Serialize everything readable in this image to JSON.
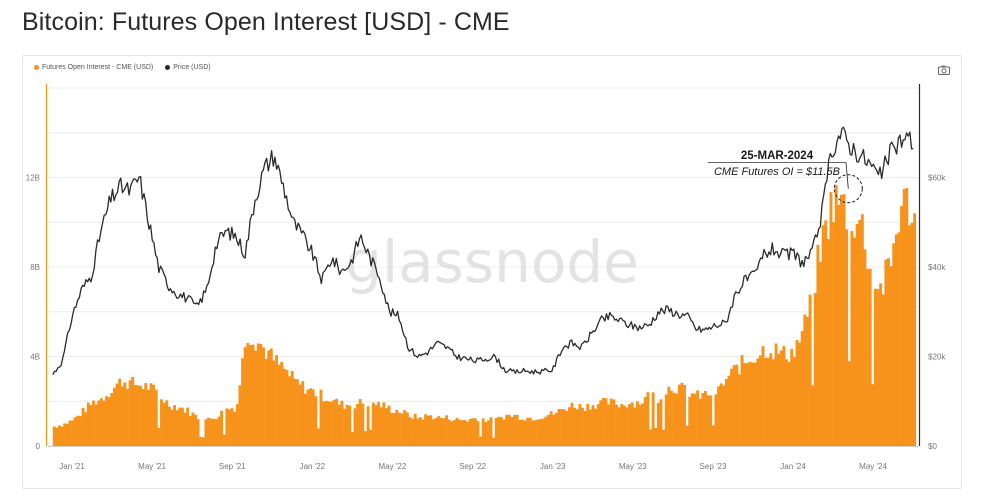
{
  "title": "Bitcoin: Futures Open Interest [USD] - CME",
  "watermark": "glassnode",
  "colors": {
    "oi": "#f7931a",
    "price": "#2b2b2b",
    "grid": "#ececec",
    "axis": "#777777"
  },
  "icons": {
    "camera": "camera-icon"
  },
  "chart_data": {
    "type": "area",
    "title": "Bitcoin: Futures Open Interest [USD] - CME",
    "legend_position": "top-left",
    "grid": true,
    "x_ticks": [
      "Jan '21",
      "May '21",
      "Sep '21",
      "Jan '22",
      "May '22",
      "Sep '22",
      "Jan '23",
      "May '23",
      "Sep '23",
      "Jan '24",
      "May '24"
    ],
    "y_left": {
      "ticks": [
        "0",
        "4B",
        "8B",
        "12B"
      ],
      "tick_values": [
        0,
        4,
        8,
        12
      ],
      "ylim": [
        0,
        16
      ]
    },
    "y_right": {
      "ticks": [
        "$0",
        "$20k",
        "$40k",
        "$60k"
      ],
      "tick_values": [
        0,
        20000,
        40000,
        60000
      ],
      "ylim": [
        0,
        80000
      ]
    },
    "x_range": [
      2020.9,
      2024.52
    ],
    "series": [
      {
        "name": "Futures Open Interest - CME (USD)",
        "axis": "left",
        "unit": "billion USD",
        "points": [
          [
            2020.92,
            0.9
          ],
          [
            2020.96,
            1.0
          ],
          [
            2021.0,
            1.2
          ],
          [
            2021.04,
            1.6
          ],
          [
            2021.08,
            2.0
          ],
          [
            2021.12,
            2.2
          ],
          [
            2021.16,
            2.6
          ],
          [
            2021.2,
            3.0
          ],
          [
            2021.24,
            2.9
          ],
          [
            2021.28,
            2.8
          ],
          [
            2021.32,
            2.7
          ],
          [
            2021.36,
            2.3
          ],
          [
            2021.4,
            1.9
          ],
          [
            2021.44,
            1.8
          ],
          [
            2021.48,
            1.6
          ],
          [
            2021.52,
            1.3
          ],
          [
            2021.56,
            1.2
          ],
          [
            2021.6,
            1.4
          ],
          [
            2021.64,
            1.7
          ],
          [
            2021.68,
            1.8
          ],
          [
            2021.72,
            5.3
          ],
          [
            2021.76,
            4.9
          ],
          [
            2021.8,
            4.4
          ],
          [
            2021.84,
            3.9
          ],
          [
            2021.88,
            3.5
          ],
          [
            2021.92,
            3.0
          ],
          [
            2021.96,
            2.7
          ],
          [
            2022.0,
            2.5
          ],
          [
            2022.04,
            2.3
          ],
          [
            2022.08,
            2.1
          ],
          [
            2022.12,
            1.9
          ],
          [
            2022.16,
            1.9
          ],
          [
            2022.2,
            2.0
          ],
          [
            2022.24,
            2.0
          ],
          [
            2022.28,
            1.9
          ],
          [
            2022.32,
            1.7
          ],
          [
            2022.36,
            1.6
          ],
          [
            2022.4,
            1.4
          ],
          [
            2022.44,
            1.3
          ],
          [
            2022.48,
            1.4
          ],
          [
            2022.52,
            1.3
          ],
          [
            2022.56,
            1.3
          ],
          [
            2022.6,
            1.2
          ],
          [
            2022.64,
            1.2
          ],
          [
            2022.68,
            1.3
          ],
          [
            2022.72,
            1.2
          ],
          [
            2022.76,
            1.2
          ],
          [
            2022.8,
            1.4
          ],
          [
            2022.84,
            1.4
          ],
          [
            2022.88,
            1.3
          ],
          [
            2022.92,
            1.3
          ],
          [
            2022.96,
            1.4
          ],
          [
            2023.0,
            1.5
          ],
          [
            2023.04,
            1.7
          ],
          [
            2023.08,
            1.9
          ],
          [
            2023.12,
            1.8
          ],
          [
            2023.16,
            1.9
          ],
          [
            2023.2,
            2.0
          ],
          [
            2023.24,
            2.0
          ],
          [
            2023.28,
            1.9
          ],
          [
            2023.32,
            2.0
          ],
          [
            2023.36,
            2.0
          ],
          [
            2023.4,
            2.4
          ],
          [
            2023.44,
            2.2
          ],
          [
            2023.48,
            2.7
          ],
          [
            2023.52,
            2.7
          ],
          [
            2023.56,
            2.5
          ],
          [
            2023.6,
            2.3
          ],
          [
            2023.64,
            2.4
          ],
          [
            2023.68,
            2.5
          ],
          [
            2023.72,
            3.1
          ],
          [
            2023.76,
            3.6
          ],
          [
            2023.8,
            3.9
          ],
          [
            2023.84,
            4.2
          ],
          [
            2023.88,
            4.5
          ],
          [
            2023.92,
            4.4
          ],
          [
            2023.96,
            4.2
          ],
          [
            2024.0,
            4.4
          ],
          [
            2024.04,
            5.4
          ],
          [
            2024.08,
            7.4
          ],
          [
            2024.12,
            9.6
          ],
          [
            2024.16,
            11.3
          ],
          [
            2024.2,
            11.1
          ],
          [
            2024.24,
            10.6
          ],
          [
            2024.28,
            10.2
          ],
          [
            2024.32,
            8.1
          ],
          [
            2024.36,
            7.2
          ],
          [
            2024.4,
            8.3
          ],
          [
            2024.44,
            11.0
          ],
          [
            2024.48,
            11.2
          ],
          [
            2024.5,
            10.4
          ]
        ]
      },
      {
        "name": "Price (USD)",
        "axis": "right",
        "unit": "USD",
        "points": [
          [
            2020.92,
            16000
          ],
          [
            2020.96,
            19000
          ],
          [
            2021.0,
            29000
          ],
          [
            2021.04,
            35000
          ],
          [
            2021.08,
            38000
          ],
          [
            2021.12,
            48000
          ],
          [
            2021.16,
            55000
          ],
          [
            2021.2,
            58000
          ],
          [
            2021.24,
            57000
          ],
          [
            2021.28,
            60000
          ],
          [
            2021.32,
            50000
          ],
          [
            2021.36,
            40000
          ],
          [
            2021.4,
            36000
          ],
          [
            2021.44,
            34000
          ],
          [
            2021.48,
            33000
          ],
          [
            2021.52,
            31000
          ],
          [
            2021.56,
            35000
          ],
          [
            2021.6,
            45000
          ],
          [
            2021.64,
            48000
          ],
          [
            2021.68,
            47000
          ],
          [
            2021.72,
            43000
          ],
          [
            2021.76,
            55000
          ],
          [
            2021.8,
            62000
          ],
          [
            2021.84,
            65000
          ],
          [
            2021.88,
            58000
          ],
          [
            2021.92,
            50000
          ],
          [
            2021.96,
            47000
          ],
          [
            2022.0,
            43000
          ],
          [
            2022.04,
            37000
          ],
          [
            2022.08,
            42000
          ],
          [
            2022.12,
            39000
          ],
          [
            2022.16,
            41000
          ],
          [
            2022.2,
            47000
          ],
          [
            2022.24,
            42000
          ],
          [
            2022.28,
            38000
          ],
          [
            2022.32,
            30000
          ],
          [
            2022.36,
            29000
          ],
          [
            2022.4,
            22000
          ],
          [
            2022.44,
            20000
          ],
          [
            2022.48,
            21000
          ],
          [
            2022.52,
            23000
          ],
          [
            2022.56,
            22000
          ],
          [
            2022.6,
            20000
          ],
          [
            2022.64,
            19500
          ],
          [
            2022.68,
            19000
          ],
          [
            2022.72,
            19500
          ],
          [
            2022.76,
            20000
          ],
          [
            2022.8,
            17000
          ],
          [
            2022.84,
            16500
          ],
          [
            2022.88,
            16800
          ],
          [
            2022.92,
            16600
          ],
          [
            2022.96,
            16700
          ],
          [
            2023.0,
            17000
          ],
          [
            2023.04,
            22000
          ],
          [
            2023.08,
            23000
          ],
          [
            2023.12,
            22000
          ],
          [
            2023.16,
            25000
          ],
          [
            2023.2,
            28000
          ],
          [
            2023.24,
            29000
          ],
          [
            2023.28,
            28000
          ],
          [
            2023.32,
            27000
          ],
          [
            2023.36,
            26500
          ],
          [
            2023.4,
            27000
          ],
          [
            2023.44,
            30000
          ],
          [
            2023.48,
            30500
          ],
          [
            2023.52,
            29500
          ],
          [
            2023.56,
            29000
          ],
          [
            2023.6,
            26000
          ],
          [
            2023.64,
            26000
          ],
          [
            2023.68,
            27000
          ],
          [
            2023.72,
            27500
          ],
          [
            2023.76,
            34000
          ],
          [
            2023.8,
            37000
          ],
          [
            2023.84,
            38000
          ],
          [
            2023.88,
            43000
          ],
          [
            2023.92,
            44000
          ],
          [
            2023.96,
            42500
          ],
          [
            2024.0,
            43000
          ],
          [
            2024.04,
            41000
          ],
          [
            2024.08,
            43000
          ],
          [
            2024.12,
            52000
          ],
          [
            2024.16,
            66000
          ],
          [
            2024.2,
            70000
          ],
          [
            2024.24,
            67000
          ],
          [
            2024.28,
            65000
          ],
          [
            2024.32,
            63000
          ],
          [
            2024.36,
            60000
          ],
          [
            2024.4,
            65000
          ],
          [
            2024.44,
            68000
          ],
          [
            2024.48,
            69000
          ],
          [
            2024.5,
            67500
          ]
        ]
      }
    ],
    "annotation": {
      "date": "25-MAR-2024",
      "text": "CME Futures OI = $11.5B",
      "x": 2024.23,
      "value": 11.5
    }
  }
}
